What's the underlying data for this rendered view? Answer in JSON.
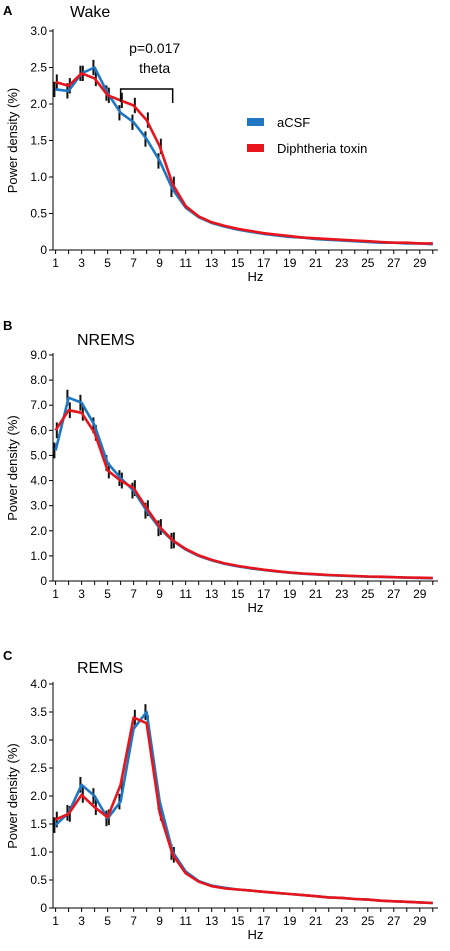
{
  "legend": [
    {
      "name": "aCSF",
      "color": "#1f77c4"
    },
    {
      "name": "Diphtheria toxin",
      "color": "#e8141c"
    }
  ],
  "chart_data": [
    {
      "type": "line",
      "panel": "A",
      "title": "Wake",
      "xlabel": "Hz",
      "ylabel": "Power density (%)",
      "x": [
        1,
        2,
        3,
        4,
        5,
        6,
        7,
        8,
        9,
        10,
        11,
        12,
        13,
        14,
        15,
        16,
        17,
        18,
        19,
        20,
        21,
        22,
        23,
        24,
        25,
        26,
        27,
        28,
        29,
        30
      ],
      "xticks": [
        1,
        3,
        5,
        7,
        9,
        11,
        13,
        15,
        17,
        19,
        21,
        23,
        25,
        27,
        29
      ],
      "ylim": [
        0,
        3.0
      ],
      "yticks": [
        "0",
        "0.5",
        "1.0",
        "1.5",
        "2.0",
        "2.5",
        "3.0"
      ],
      "ytick_values": [
        0,
        0.5,
        1.0,
        1.5,
        2.0,
        2.5,
        3.0
      ],
      "legend_position": "right",
      "series": [
        {
          "name": "aCSF",
          "color": "#1f77c4",
          "values": [
            2.2,
            2.18,
            2.42,
            2.5,
            2.15,
            1.88,
            1.75,
            1.52,
            1.22,
            0.83,
            0.58,
            0.45,
            0.37,
            0.32,
            0.28,
            0.25,
            0.22,
            0.2,
            0.18,
            0.17,
            0.15,
            0.14,
            0.13,
            0.12,
            0.11,
            0.1,
            0.1,
            0.09,
            0.09,
            0.08
          ]
        },
        {
          "name": "Diphtheria toxin",
          "color": "#e8141c",
          "values": [
            2.3,
            2.25,
            2.42,
            2.35,
            2.12,
            2.05,
            1.98,
            1.78,
            1.42,
            0.9,
            0.6,
            0.46,
            0.38,
            0.33,
            0.29,
            0.26,
            0.23,
            0.21,
            0.19,
            0.17,
            0.16,
            0.15,
            0.14,
            0.13,
            0.12,
            0.11,
            0.1,
            0.1,
            0.09,
            0.09
          ]
        }
      ],
      "annotations": [
        {
          "text": "p=0.017",
          "line2": "theta",
          "x_from": 6,
          "x_to": 10
        }
      ]
    },
    {
      "type": "line",
      "panel": "B",
      "title": "NREMS",
      "xlabel": "Hz",
      "ylabel": "Power density (%)",
      "x": [
        1,
        2,
        3,
        4,
        5,
        6,
        7,
        8,
        9,
        10,
        11,
        12,
        13,
        14,
        15,
        16,
        17,
        18,
        19,
        20,
        21,
        22,
        23,
        24,
        25,
        26,
        27,
        28,
        29,
        30
      ],
      "xticks": [
        1,
        3,
        5,
        7,
        9,
        11,
        13,
        15,
        17,
        19,
        21,
        23,
        25,
        27,
        29
      ],
      "ylim": [
        0,
        9.0
      ],
      "yticks": [
        "0",
        "1.0",
        "2.0",
        "3.0",
        "4.0",
        "5.0",
        "6.0",
        "7.0",
        "8.0",
        "9.0"
      ],
      "ytick_values": [
        0,
        1,
        2,
        3,
        4,
        5,
        6,
        7,
        8,
        9
      ],
      "series": [
        {
          "name": "aCSF",
          "color": "#1f77c4",
          "values": [
            5.2,
            7.3,
            7.1,
            6.2,
            4.7,
            4.1,
            3.6,
            2.8,
            2.1,
            1.6,
            1.25,
            1.0,
            0.82,
            0.68,
            0.58,
            0.5,
            0.44,
            0.38,
            0.33,
            0.29,
            0.26,
            0.23,
            0.21,
            0.19,
            0.17,
            0.16,
            0.15,
            0.13,
            0.12,
            0.11
          ]
        },
        {
          "name": "Diphtheria toxin",
          "color": "#e8141c",
          "values": [
            6.0,
            6.8,
            6.7,
            5.9,
            4.4,
            4.0,
            3.7,
            2.9,
            2.15,
            1.62,
            1.28,
            1.02,
            0.84,
            0.7,
            0.6,
            0.52,
            0.45,
            0.39,
            0.34,
            0.3,
            0.27,
            0.24,
            0.22,
            0.2,
            0.18,
            0.17,
            0.15,
            0.14,
            0.13,
            0.12
          ]
        }
      ]
    },
    {
      "type": "line",
      "panel": "C",
      "title": "REMS",
      "xlabel": "Hz",
      "ylabel": "Power density (%)",
      "x": [
        1,
        2,
        3,
        4,
        5,
        6,
        7,
        8,
        9,
        10,
        11,
        12,
        13,
        14,
        15,
        16,
        17,
        18,
        19,
        20,
        21,
        22,
        23,
        24,
        25,
        26,
        27,
        28,
        29,
        30
      ],
      "xticks": [
        1,
        3,
        5,
        7,
        9,
        11,
        13,
        15,
        17,
        19,
        21,
        23,
        25,
        27,
        29
      ],
      "ylim": [
        0,
        4.0
      ],
      "yticks": [
        "0",
        "0.5",
        "1.0",
        "1.5",
        "2.0",
        "2.5",
        "3.0",
        "3.5",
        "4.0"
      ],
      "ytick_values": [
        0,
        0.5,
        1.0,
        1.5,
        2.0,
        2.5,
        3.0,
        3.5,
        4.0
      ],
      "series": [
        {
          "name": "aCSF",
          "color": "#1f77c4",
          "values": [
            1.48,
            1.7,
            2.2,
            2.0,
            1.6,
            1.9,
            3.2,
            3.5,
            1.9,
            1.0,
            0.65,
            0.48,
            0.4,
            0.36,
            0.33,
            0.31,
            0.29,
            0.27,
            0.25,
            0.23,
            0.21,
            0.19,
            0.18,
            0.16,
            0.15,
            0.13,
            0.12,
            0.11,
            0.1,
            0.09
          ]
        },
        {
          "name": "Diphtheria toxin",
          "color": "#e8141c",
          "values": [
            1.58,
            1.68,
            2.02,
            1.8,
            1.62,
            2.2,
            3.4,
            3.3,
            1.7,
            0.95,
            0.62,
            0.47,
            0.39,
            0.35,
            0.33,
            0.31,
            0.29,
            0.27,
            0.25,
            0.23,
            0.21,
            0.19,
            0.18,
            0.16,
            0.15,
            0.13,
            0.12,
            0.11,
            0.1,
            0.09
          ]
        }
      ]
    }
  ]
}
